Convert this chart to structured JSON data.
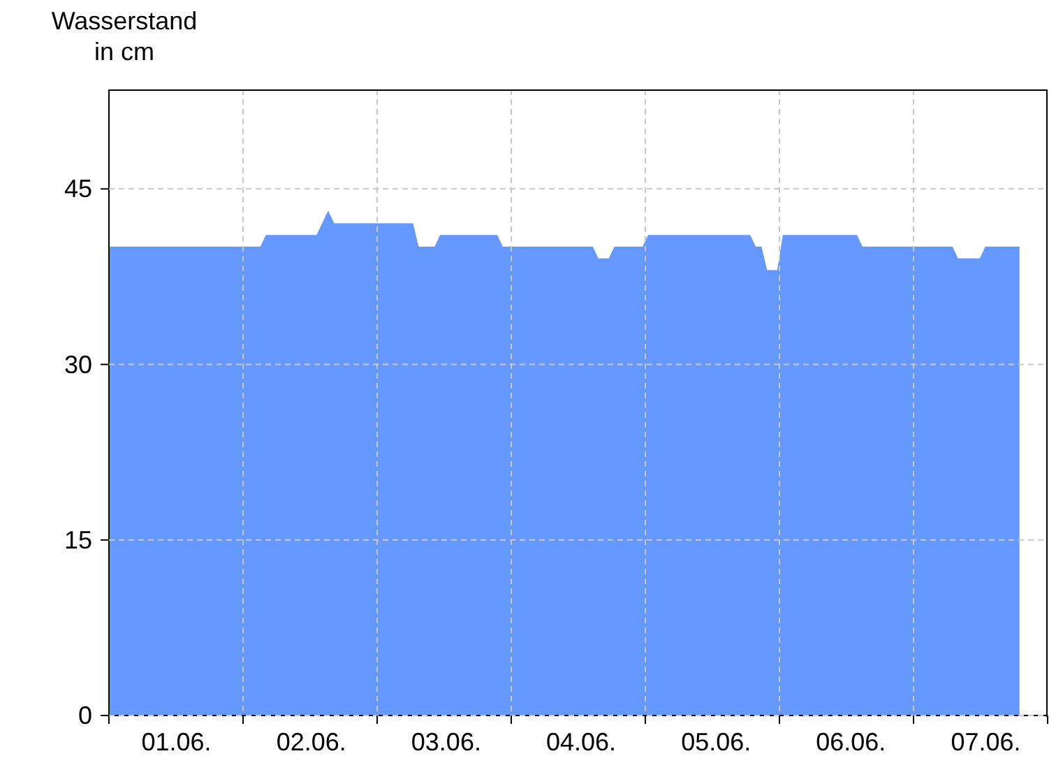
{
  "chart_data": {
    "type": "area",
    "ylabel": "Wasserstand in cm",
    "categories": [
      null,
      null,
      null,
      null,
      null,
      null,
      null,
      null,
      null,
      null,
      null,
      null,
      "01.06.",
      null,
      null,
      null,
      null,
      null,
      null,
      null,
      null,
      null,
      null,
      null,
      null,
      null,
      null,
      null,
      null,
      null,
      null,
      null,
      null,
      null,
      null,
      null,
      "02.06.",
      null,
      null,
      null,
      null,
      null,
      null,
      null,
      null,
      null,
      null,
      null,
      null,
      null,
      null,
      null,
      null,
      null,
      null,
      null,
      null,
      null,
      null,
      null,
      "03.06.",
      null,
      null,
      null,
      null,
      null,
      null,
      null,
      null,
      null,
      null,
      null,
      null,
      null,
      null,
      null,
      null,
      null,
      null,
      null,
      null,
      null,
      null,
      null,
      "04.06.",
      null,
      null,
      null,
      null,
      null,
      null,
      null,
      null,
      null,
      null,
      null,
      null,
      null,
      null,
      null,
      null,
      null,
      null,
      null,
      null,
      null,
      null,
      null,
      "05.06.",
      null,
      null,
      null,
      null,
      null,
      null,
      null,
      null,
      null,
      null,
      null,
      null,
      null,
      null,
      null,
      null,
      null,
      null,
      null,
      null,
      null,
      null,
      null,
      "06.06.",
      null,
      null,
      null,
      null,
      null,
      null,
      null,
      null,
      null,
      null,
      null,
      null,
      null,
      null,
      null,
      null,
      null,
      null,
      null,
      null,
      null,
      null,
      null,
      "07.06.",
      null,
      null,
      null,
      null,
      null,
      null,
      null,
      null,
      null,
      null,
      null
    ],
    "series": [
      {
        "color": "#6699ff",
        "values": [
          40,
          40,
          40,
          40,
          40,
          40,
          40,
          40,
          40,
          40,
          40,
          40,
          40,
          40,
          40,
          40,
          40,
          40,
          40,
          40,
          40,
          40,
          40,
          40,
          40,
          40,
          40,
          40,
          41,
          41,
          41,
          41,
          41,
          41,
          41,
          41,
          41,
          41,
          42,
          43,
          42,
          42,
          42,
          42,
          42,
          42,
          42,
          42,
          42,
          42,
          42,
          42,
          42,
          42,
          42,
          40,
          40,
          40,
          40,
          41,
          41,
          41,
          41,
          41,
          41,
          41,
          41,
          41,
          41,
          41,
          40,
          40,
          40,
          40,
          40,
          40,
          40,
          40,
          40,
          40,
          40,
          40,
          40,
          40,
          40,
          40,
          40,
          39,
          39,
          39,
          40,
          40,
          40,
          40,
          40,
          40,
          41,
          41,
          41,
          41,
          41,
          41,
          41,
          41,
          41,
          41,
          41,
          41,
          41,
          41,
          41,
          41,
          41,
          41,
          41,
          40,
          40,
          38,
          38,
          38,
          41,
          41,
          41,
          41,
          41,
          41,
          41,
          41,
          41,
          41,
          41,
          41,
          41,
          41,
          40,
          40,
          40,
          40,
          40,
          40,
          40,
          40,
          40,
          40,
          40,
          40,
          40,
          40,
          40,
          40,
          40,
          39,
          39,
          39,
          39,
          39,
          40,
          40,
          40,
          40,
          40,
          40,
          40,
          null,
          null,
          null,
          null,
          null
        ]
      }
    ],
    "ylim": [
      0,
      53.5
    ],
    "yticks": [
      0,
      15,
      30,
      45
    ],
    "grid": true
  }
}
